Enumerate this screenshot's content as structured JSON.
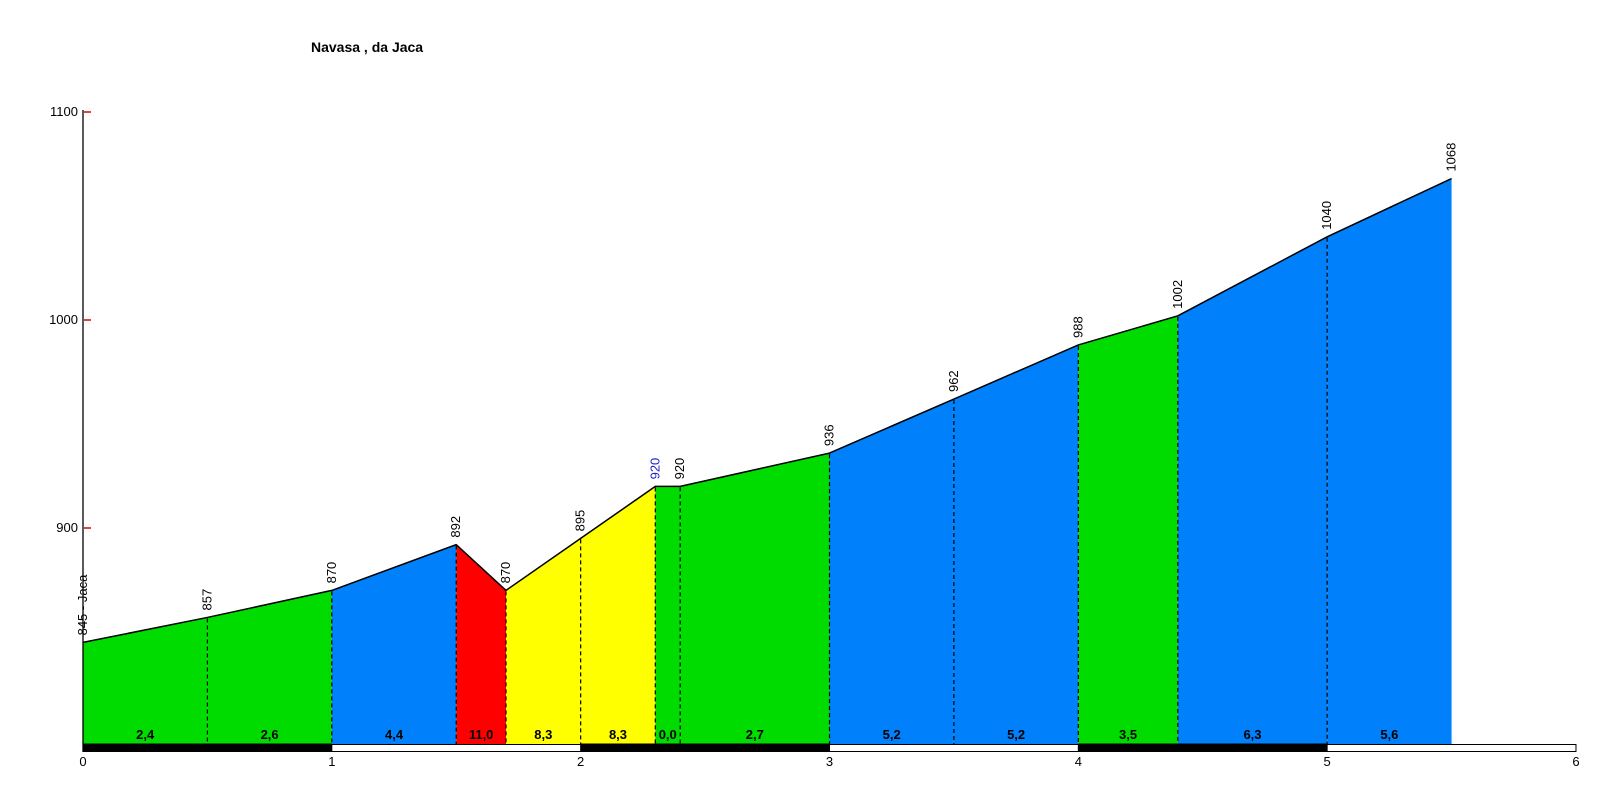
{
  "title": "Navasa , da Jaca",
  "palette": {
    "green": "#00DC00",
    "blue": "#0080FA",
    "red": "#FF0000",
    "yellow": "#FFFF00",
    "white": "#FFFFFF",
    "black": "#000000",
    "blue_label": "#2222CC",
    "tick_red": "#E00000",
    "background": "#FFFFFF"
  },
  "chart_data": {
    "type": "area",
    "title": "Navasa , da Jaca",
    "x_unit": "km",
    "y_unit": "m",
    "x_ticks": [
      0,
      1,
      2,
      3,
      4,
      5,
      6
    ],
    "y_ticks": [
      900,
      1000,
      1100
    ],
    "x_range": [
      0,
      6
    ],
    "y_axis_top": 1100,
    "grid": false,
    "legend": false,
    "points": [
      {
        "km": 0.0,
        "elev": 845,
        "label": "845 - Jaca",
        "label_color": "black"
      },
      {
        "km": 0.5,
        "elev": 857,
        "label": "857",
        "label_color": "black"
      },
      {
        "km": 1.0,
        "elev": 870,
        "label": "870",
        "label_color": "black"
      },
      {
        "km": 1.5,
        "elev": 892,
        "label": "892",
        "label_color": "black"
      },
      {
        "km": 1.7,
        "elev": 870,
        "label": "870",
        "label_color": "black"
      },
      {
        "km": 2.0,
        "elev": 895,
        "label": "895",
        "label_color": "black"
      },
      {
        "km": 2.3,
        "elev": 920,
        "label": "920",
        "label_color": "blue"
      },
      {
        "km": 2.4,
        "elev": 920,
        "label": "920",
        "label_color": "black"
      },
      {
        "km": 3.0,
        "elev": 936,
        "label": "936",
        "label_color": "black"
      },
      {
        "km": 3.5,
        "elev": 962,
        "label": "962",
        "label_color": "black"
      },
      {
        "km": 4.0,
        "elev": 988,
        "label": "988",
        "label_color": "black"
      },
      {
        "km": 4.4,
        "elev": 1002,
        "label": "1002",
        "label_color": "black"
      },
      {
        "km": 5.0,
        "elev": 1040,
        "label": "1040",
        "label_color": "black"
      },
      {
        "km": 5.5,
        "elev": 1068,
        "label": "1068",
        "label_color": "black"
      }
    ],
    "segments": [
      {
        "gradient": "2,4",
        "color": "green"
      },
      {
        "gradient": "2,6",
        "color": "green"
      },
      {
        "gradient": "4,4",
        "color": "blue"
      },
      {
        "gradient": "11,0",
        "color": "red"
      },
      {
        "gradient": "8,3",
        "color": "yellow"
      },
      {
        "gradient": "8,3",
        "color": "yellow"
      },
      {
        "gradient": "0,0",
        "color": "green"
      },
      {
        "gradient": "2,7",
        "color": "green"
      },
      {
        "gradient": "5,2",
        "color": "blue"
      },
      {
        "gradient": "5,2",
        "color": "blue"
      },
      {
        "gradient": "3,5",
        "color": "green"
      },
      {
        "gradient": "6,3",
        "color": "blue"
      },
      {
        "gradient": "5,6",
        "color": "blue"
      }
    ],
    "km_bar": [
      "black",
      "white",
      "black",
      "white",
      "black",
      "white"
    ]
  }
}
